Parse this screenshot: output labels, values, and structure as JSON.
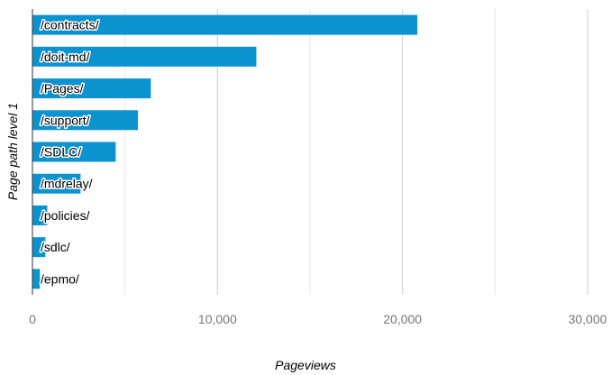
{
  "chart_data": {
    "type": "bar",
    "orientation": "horizontal",
    "title": "",
    "xlabel": "Pageviews",
    "ylabel": "Page path level 1",
    "categories": [
      "/contracts/",
      "/doit-md/",
      "/Pages/",
      "/support/",
      "/SDLC/",
      "/mdrelay/",
      "/policies/",
      "/sdlc/",
      "/epmo/"
    ],
    "values": [
      20800,
      12100,
      6400,
      5700,
      4500,
      2600,
      800,
      700,
      400
    ],
    "xlim": [
      0,
      30000
    ],
    "xticks": [
      0,
      10000,
      20000,
      30000
    ],
    "xtick_labels": [
      "0",
      "10,000",
      "20,000",
      "30,000"
    ],
    "grid": true,
    "legend": "none",
    "colors": {
      "bar": "#0b93cf",
      "grid": "#cccccc",
      "axis": "#333333",
      "tick_text": "#757575"
    }
  }
}
